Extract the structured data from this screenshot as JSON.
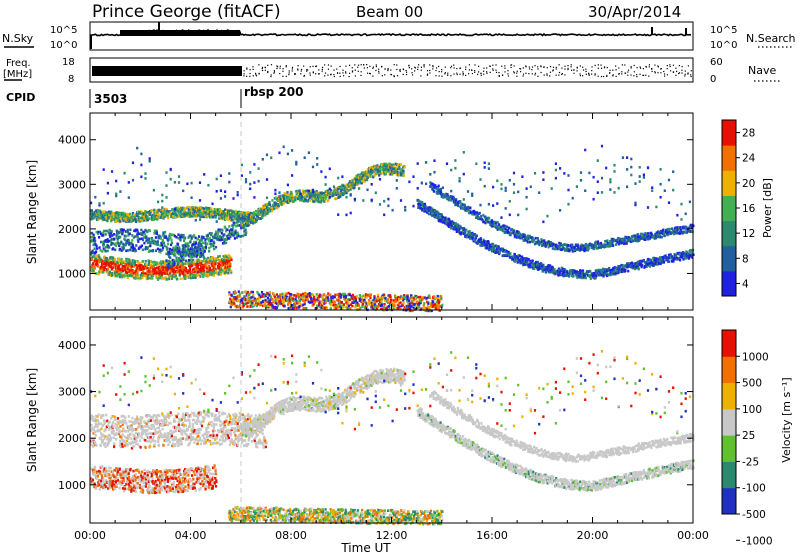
{
  "header": {
    "station": "Prince George (fitACF)",
    "beam": "Beam 00",
    "date": "30/Apr/2014"
  },
  "top_panels": {
    "nsky": {
      "label": "N.Sky",
      "top_tick": "10^5",
      "bottom_tick": "10^0"
    },
    "nsearch": {
      "label": "N.Search",
      "top_tick": "10^5",
      "bottom_tick": "10^0"
    },
    "freq": {
      "label_line1": "Freq.",
      "label_line2": "[MHz]",
      "top_tick": "18",
      "bottom_tick": "8"
    },
    "nave": {
      "label": "Nave",
      "top_tick": "60",
      "bottom_tick": "0"
    },
    "cpid": {
      "label": "CPID",
      "segments": [
        {
          "start_hour": 0,
          "text": "3503"
        },
        {
          "start_hour": 6,
          "text": "rbsp 200"
        }
      ]
    }
  },
  "chart_data": [
    {
      "type": "heatmap",
      "quantity": "Power",
      "ylabel": "Slant Range [km]",
      "xlabel": "",
      "xlim": [
        0,
        24
      ],
      "ylim": [
        180,
        4600
      ],
      "y_ticks": [
        1000,
        2000,
        3000,
        4000
      ],
      "colorbar": {
        "label": "Power [dB]",
        "ticks": [
          "28",
          "24",
          "20",
          "16",
          "12",
          "8",
          "4"
        ],
        "colors": [
          "#2020e0",
          "#2060a0",
          "#2a8a70",
          "#40b050",
          "#f0b000",
          "#f07000",
          "#e81000"
        ]
      },
      "features": [
        {
          "hours": [
            0,
            5.5
          ],
          "range_km": [
            1000,
            1400
          ],
          "level": "high"
        },
        {
          "hours": [
            0,
            7
          ],
          "range_km": [
            2200,
            2500
          ],
          "level": "mid"
        },
        {
          "hours": [
            6,
            13
          ],
          "range_km": [
            2300,
            3500
          ],
          "level": "mid"
        },
        {
          "hours": [
            13,
            24
          ],
          "range_km": [
            800,
            2000
          ],
          "level": "low"
        },
        {
          "hours": [
            5.5,
            14
          ],
          "range_km": [
            250,
            700
          ],
          "level": "high"
        }
      ]
    },
    {
      "type": "heatmap",
      "quantity": "Velocity",
      "ylabel": "Slant Range [km]",
      "xlabel": "Time UT",
      "xlim": [
        0,
        24
      ],
      "ylim": [
        180,
        4600
      ],
      "x_ticks": [
        "00:00",
        "04:00",
        "08:00",
        "12:00",
        "16:00",
        "20:00",
        "00:00"
      ],
      "y_ticks": [
        1000,
        2000,
        3000,
        4000
      ],
      "colorbar": {
        "label": "Velocity [m s⁻¹]",
        "ticks": [
          "1000",
          "500",
          "100",
          "25",
          "-25",
          "-100",
          "-500",
          "-1000"
        ],
        "colors": [
          "#2030c0",
          "#2a8a70",
          "#60c030",
          "#c8c8c8",
          "#f0b000",
          "#f07000",
          "#e81000"
        ]
      },
      "features": [
        {
          "hours": [
            0,
            5
          ],
          "range_km": [
            900,
            1500
          ],
          "level": "negative"
        },
        {
          "hours": [
            0,
            7
          ],
          "range_km": [
            1800,
            2500
          ],
          "level": "ground-scatter"
        },
        {
          "hours": [
            6,
            13
          ],
          "range_km": [
            2300,
            3500
          ],
          "level": "ground-scatter"
        },
        {
          "hours": [
            13,
            24
          ],
          "range_km": [
            800,
            2000
          ],
          "level": "ground-scatter"
        },
        {
          "hours": [
            5.5,
            14
          ],
          "range_km": [
            250,
            700
          ],
          "level": "positive"
        }
      ]
    }
  ]
}
